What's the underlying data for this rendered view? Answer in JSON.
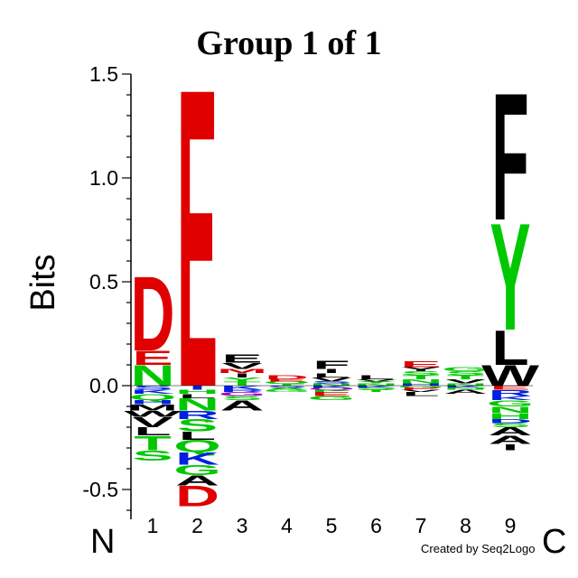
{
  "chart_data": {
    "type": "sequence-logo",
    "title": "Group 1 of 1",
    "ylabel": "Bits",
    "xlabel": "",
    "ylim": [
      -0.6,
      1.5
    ],
    "yticks": [
      "1.5",
      "1.0",
      "0.5",
      "0.0",
      "-0.5"
    ],
    "ytick_values": [
      1.5,
      1.0,
      0.5,
      0.0,
      -0.5
    ],
    "positions": [
      "1",
      "2",
      "3",
      "4",
      "5",
      "6",
      "7",
      "8",
      "9"
    ],
    "n_terminal": "N",
    "c_terminal": "C",
    "credit": "Created by Seq2Logo",
    "colors": {
      "acidic": "#e00000",
      "polar": "#00c800",
      "basic": "#0020e0",
      "hydrophobic": "#000000",
      "amide": "#a000c0"
    },
    "stacks": [
      {
        "position": "1",
        "positive": [
          {
            "letter": "N",
            "color": "#00c800",
            "bits": 0.1
          },
          {
            "letter": "E",
            "color": "#e00000",
            "bits": 0.07
          },
          {
            "letter": "D",
            "color": "#e00000",
            "bits": 0.37
          }
        ],
        "negative": [
          {
            "letter": "S",
            "color": "#0020e0",
            "bits": 0.02
          },
          {
            "letter": "K",
            "color": "#0020e0",
            "bits": 0.02
          },
          {
            "letter": "Q",
            "color": "#00c800",
            "bits": 0.03
          },
          {
            "letter": "H",
            "color": "#0020e0",
            "bits": 0.02
          },
          {
            "letter": "M",
            "color": "#000000",
            "bits": 0.03
          },
          {
            "letter": "W",
            "color": "#000000",
            "bits": 0.03
          },
          {
            "letter": "V",
            "color": "#000000",
            "bits": 0.05
          },
          {
            "letter": "L",
            "color": "#000000",
            "bits": 0.04
          },
          {
            "letter": "T",
            "color": "#00c800",
            "bits": 0.07
          },
          {
            "letter": "S",
            "color": "#00c800",
            "bits": 0.05
          }
        ]
      },
      {
        "position": "2",
        "positive": [
          {
            "letter": "E",
            "color": "#e00000",
            "bits": 1.48
          }
        ],
        "negative": [
          {
            "letter": "I",
            "color": "#0020e0",
            "bits": 0.02
          },
          {
            "letter": "H",
            "color": "#00c800",
            "bits": 0.02
          },
          {
            "letter": "L",
            "color": "#000000",
            "bits": 0.02
          },
          {
            "letter": "N",
            "color": "#00c800",
            "bits": 0.06
          },
          {
            "letter": "R",
            "color": "#0020e0",
            "bits": 0.04
          },
          {
            "letter": "S",
            "color": "#00c800",
            "bits": 0.06
          },
          {
            "letter": "L",
            "color": "#000000",
            "bits": 0.04
          },
          {
            "letter": "Q",
            "color": "#00c800",
            "bits": 0.06
          },
          {
            "letter": "K",
            "color": "#0020e0",
            "bits": 0.06
          },
          {
            "letter": "G",
            "color": "#00c800",
            "bits": 0.05
          },
          {
            "letter": "A",
            "color": "#000000",
            "bits": 0.05
          },
          {
            "letter": "D",
            "color": "#e00000",
            "bits": 0.1
          }
        ]
      },
      {
        "position": "3",
        "positive": [
          {
            "letter": "T",
            "color": "#00c800",
            "bits": 0.02
          },
          {
            "letter": "Y",
            "color": "#00c800",
            "bits": 0.02
          },
          {
            "letter": "I",
            "color": "#000000",
            "bits": 0.02
          },
          {
            "letter": "M",
            "color": "#e00000",
            "bits": 0.02
          },
          {
            "letter": "V",
            "color": "#000000",
            "bits": 0.03
          },
          {
            "letter": "E",
            "color": "#000000",
            "bits": 0.04
          }
        ],
        "negative": [
          {
            "letter": "K",
            "color": "#0020e0",
            "bits": 0.02
          },
          {
            "letter": "R",
            "color": "#0020e0",
            "bits": 0.01
          },
          {
            "letter": "G",
            "color": "#a000c0",
            "bits": 0.02
          },
          {
            "letter": "S",
            "color": "#00c800",
            "bits": 0.02
          },
          {
            "letter": "A",
            "color": "#000000",
            "bits": 0.05
          }
        ]
      },
      {
        "position": "4",
        "positive": [
          {
            "letter": "T",
            "color": "#00c800",
            "bits": 0.01
          },
          {
            "letter": "Q",
            "color": "#00c800",
            "bits": 0.01
          },
          {
            "letter": "E",
            "color": "#e00000",
            "bits": 0.01
          },
          {
            "letter": "D",
            "color": "#e00000",
            "bits": 0.02
          }
        ],
        "negative": [
          {
            "letter": "S",
            "color": "#0020e0",
            "bits": 0.01
          },
          {
            "letter": "A",
            "color": "#00c800",
            "bits": 0.01
          },
          {
            "letter": "G",
            "color": "#00c800",
            "bits": 0.01
          }
        ]
      },
      {
        "position": "5",
        "positive": [
          {
            "letter": "N",
            "color": "#00c800",
            "bits": 0.01
          },
          {
            "letter": "S",
            "color": "#0020e0",
            "bits": 0.01
          },
          {
            "letter": "V",
            "color": "#000000",
            "bits": 0.02
          },
          {
            "letter": "L",
            "color": "#000000",
            "bits": 0.02
          },
          {
            "letter": "I",
            "color": "#000000",
            "bits": 0.02
          },
          {
            "letter": "F",
            "color": "#000000",
            "bits": 0.04
          }
        ],
        "negative": [
          {
            "letter": "K",
            "color": "#0020e0",
            "bits": 0.01
          },
          {
            "letter": "Q",
            "color": "#a000c0",
            "bits": 0.01
          },
          {
            "letter": "P",
            "color": "#00c800",
            "bits": 0.01
          },
          {
            "letter": "E",
            "color": "#e00000",
            "bits": 0.02
          },
          {
            "letter": "G",
            "color": "#00c800",
            "bits": 0.02
          }
        ]
      },
      {
        "position": "6",
        "positive": [
          {
            "letter": "N",
            "color": "#00c800",
            "bits": 0.01
          },
          {
            "letter": "Y",
            "color": "#00c800",
            "bits": 0.01
          },
          {
            "letter": "V",
            "color": "#000000",
            "bits": 0.01
          },
          {
            "letter": "L",
            "color": "#000000",
            "bits": 0.02
          }
        ],
        "negative": [
          {
            "letter": "K",
            "color": "#0020e0",
            "bits": 0.01
          },
          {
            "letter": "S",
            "color": "#00c800",
            "bits": 0.01
          },
          {
            "letter": "T",
            "color": "#00c800",
            "bits": 0.01
          }
        ]
      },
      {
        "position": "7",
        "positive": [
          {
            "letter": "H",
            "color": "#0020e0",
            "bits": 0.01
          },
          {
            "letter": "N",
            "color": "#00c800",
            "bits": 0.02
          },
          {
            "letter": "T",
            "color": "#00c800",
            "bits": 0.02
          },
          {
            "letter": "S",
            "color": "#00c800",
            "bits": 0.02
          },
          {
            "letter": "Y",
            "color": "#000000",
            "bits": 0.02
          },
          {
            "letter": "E",
            "color": "#e00000",
            "bits": 0.03
          }
        ],
        "negative": [
          {
            "letter": "G",
            "color": "#00c800",
            "bits": 0.01
          },
          {
            "letter": "P",
            "color": "#e00000",
            "bits": 0.01
          },
          {
            "letter": "V",
            "color": "#000000",
            "bits": 0.01
          },
          {
            "letter": "L",
            "color": "#000000",
            "bits": 0.02
          }
        ]
      },
      {
        "position": "8",
        "positive": [
          {
            "letter": "N",
            "color": "#00c800",
            "bits": 0.01
          },
          {
            "letter": "V",
            "color": "#000000",
            "bits": 0.02
          },
          {
            "letter": "T",
            "color": "#00c800",
            "bits": 0.02
          },
          {
            "letter": "S",
            "color": "#00c800",
            "bits": 0.02
          },
          {
            "letter": "G",
            "color": "#00c800",
            "bits": 0.02
          }
        ],
        "negative": [
          {
            "letter": "K",
            "color": "#0020e0",
            "bits": 0.01
          },
          {
            "letter": "N",
            "color": "#00c800",
            "bits": 0.01
          },
          {
            "letter": "A",
            "color": "#000000",
            "bits": 0.02
          }
        ]
      },
      {
        "position": "9",
        "positive": [
          {
            "letter": "W",
            "color": "#000000",
            "bits": 0.1
          },
          {
            "letter": "L",
            "color": "#000000",
            "bits": 0.17
          },
          {
            "letter": "Y",
            "color": "#00c800",
            "bits": 0.53
          },
          {
            "letter": "F",
            "color": "#000000",
            "bits": 0.63
          }
        ],
        "negative": [
          {
            "letter": "E",
            "color": "#e00000",
            "bits": 0.02
          },
          {
            "letter": "R",
            "color": "#0020e0",
            "bits": 0.03
          },
          {
            "letter": "K",
            "color": "#0020e0",
            "bits": 0.02
          },
          {
            "letter": "G",
            "color": "#00c800",
            "bits": 0.03
          },
          {
            "letter": "N",
            "color": "#00c800",
            "bits": 0.03
          },
          {
            "letter": "H",
            "color": "#00c800",
            "bits": 0.03
          },
          {
            "letter": "D",
            "color": "#0020e0",
            "bits": 0.02
          },
          {
            "letter": "S",
            "color": "#00c800",
            "bits": 0.02
          },
          {
            "letter": "A",
            "color": "#000000",
            "bits": 0.04
          },
          {
            "letter": "A",
            "color": "#000000",
            "bits": 0.04
          },
          {
            "letter": "I",
            "color": "#000000",
            "bits": 0.03
          }
        ]
      }
    ]
  }
}
